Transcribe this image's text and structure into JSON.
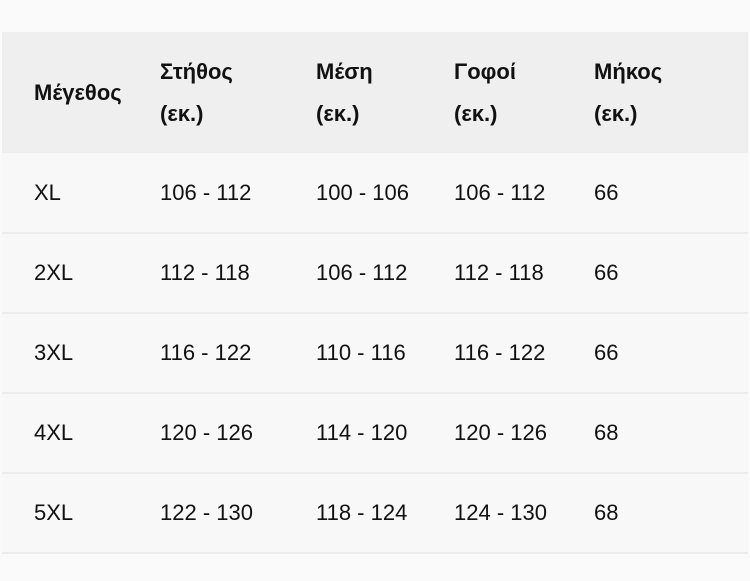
{
  "table": {
    "headers": [
      {
        "line1": "Μέγεθος",
        "line2": ""
      },
      {
        "line1": "Στήθος",
        "line2": "(εκ.)"
      },
      {
        "line1": "Μέση",
        "line2": "(εκ.)"
      },
      {
        "line1": "Γοφοί",
        "line2": "(εκ.)"
      },
      {
        "line1": "Μήκος",
        "line2": "(εκ.)"
      }
    ],
    "rows": [
      [
        "XL",
        "106 - 112",
        "100 - 106",
        "106 - 112",
        "66"
      ],
      [
        "2XL",
        "112 - 118",
        "106 - 112",
        "112 - 118",
        "66"
      ],
      [
        "3XL",
        "116 - 122",
        "110 - 116",
        "116 - 122",
        "66"
      ],
      [
        "4XL",
        "120 - 126",
        "114 - 120",
        "120 - 126",
        "68"
      ],
      [
        "5XL",
        "122 - 130",
        "118 - 124",
        "124 - 130",
        "68"
      ]
    ]
  }
}
